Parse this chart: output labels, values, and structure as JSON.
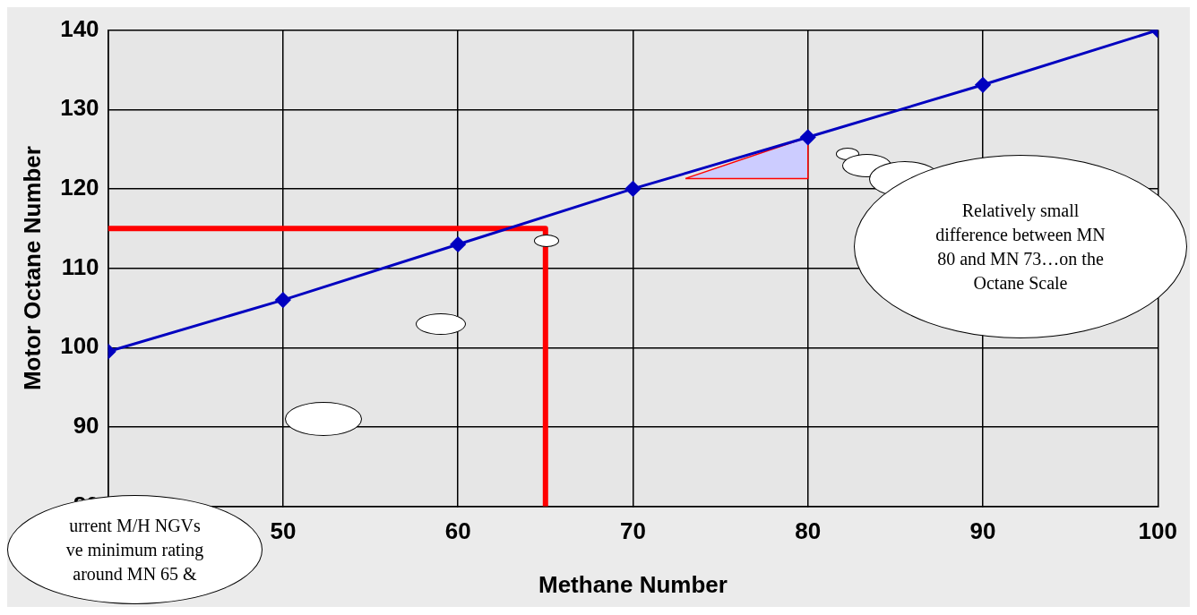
{
  "chart_data": {
    "type": "line",
    "xlabel": "Methane Number",
    "ylabel": "Motor Octane Number",
    "x": [
      40,
      50,
      60,
      70,
      80,
      90,
      100
    ],
    "series": [
      {
        "color": "#0000c0",
        "values": [
          99.5,
          106,
          113,
          120,
          126.5,
          133.1,
          140
        ]
      },
      {
        "type": "line",
        "marker": "none",
        "color": "#ff0000",
        "x": [
          40,
          65,
          65
        ],
        "values": [
          115,
          115,
          80
        ]
      },
      {
        "type": "area",
        "marker": "none",
        "color": "#ccccff",
        "x": [
          73,
          80,
          80,
          73
        ],
        "values": [
          121.3,
          126.5,
          121.3,
          121.3
        ]
      }
    ],
    "xlim": [
      40,
      100
    ],
    "xticks": [
      {
        "value": 40,
        "label": null
      },
      50,
      60,
      70,
      80,
      90,
      100
    ],
    "ylim": [
      80,
      140
    ],
    "yticks": [
      80,
      90,
      100,
      110,
      120,
      130,
      140
    ],
    "grid": true,
    "marker": "diamond",
    "legend": false,
    "annotations": [
      "Relatively small\ndifference between MN\n80 and MN 73…on the\nOctane Scale",
      "urrent M/H NGVs\nve minimum rating\naround MN 65 &"
    ]
  }
}
